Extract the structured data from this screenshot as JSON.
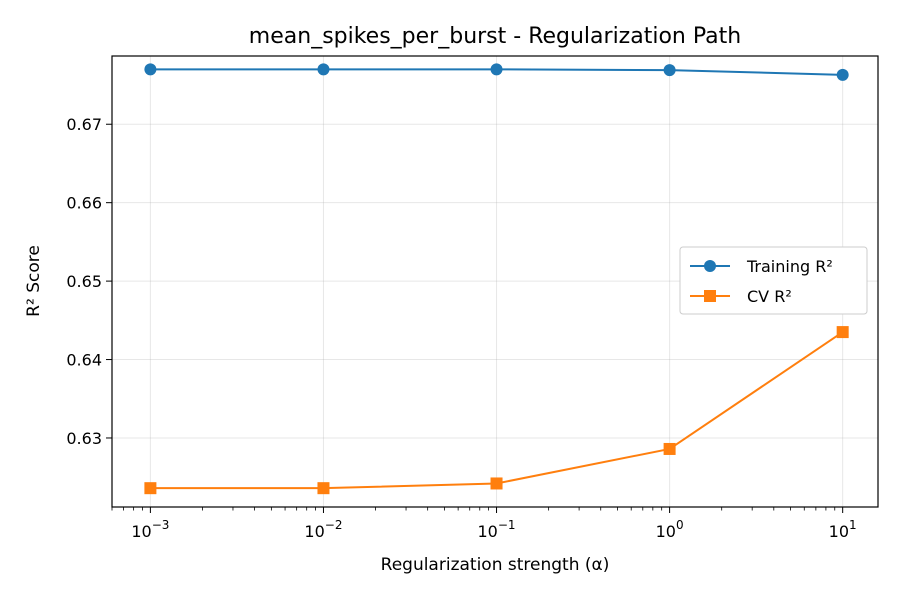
{
  "chart_data": {
    "type": "line",
    "title": "mean_spikes_per_burst - Regularization Path",
    "xlabel": "Regularization strength (α)",
    "ylabel": "R² Score",
    "xscale": "log",
    "xlim": [
      0.0006,
      16
    ],
    "ylim": [
      0.6212,
      0.6787
    ],
    "grid": true,
    "legend_position": "center-right",
    "x": [
      0.001,
      0.01,
      0.1,
      1,
      10
    ],
    "xtick_labels": [
      {
        "base": "10",
        "exp": "−3"
      },
      {
        "base": "10",
        "exp": "−2"
      },
      {
        "base": "10",
        "exp": "−1"
      },
      {
        "base": "10",
        "exp": "0"
      },
      {
        "base": "10",
        "exp": "1"
      }
    ],
    "yticks": [
      "0.63",
      "0.64",
      "0.65",
      "0.66",
      "0.67"
    ],
    "series": [
      {
        "name": "Training R²",
        "color": "#1f77b4",
        "marker": "circle",
        "values": [
          0.677,
          0.677,
          0.677,
          0.6769,
          0.6763
        ]
      },
      {
        "name": "CV R²",
        "color": "#ff7f0e",
        "marker": "square",
        "values": [
          0.6236,
          0.6236,
          0.6242,
          0.6286,
          0.6435
        ]
      }
    ]
  }
}
